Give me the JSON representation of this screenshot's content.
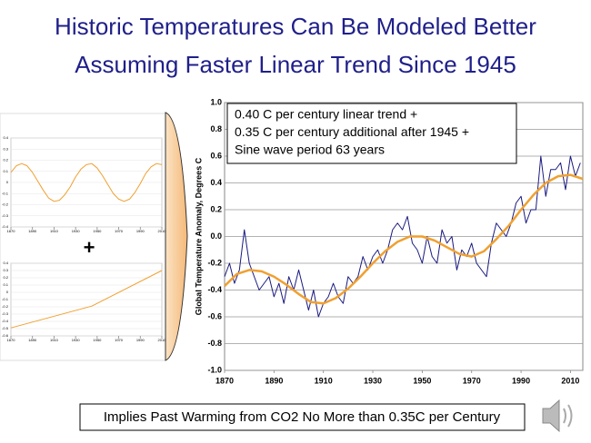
{
  "slide": {
    "title_lines": [
      "Historic Temperatures Can Be Modeled Better",
      "Assuming Faster Linear Trend Since 1945"
    ],
    "operator": "+",
    "footer": "Implies Past Warming from CO2 No More than 0.35C per Century"
  },
  "chart_data": [
    {
      "type": "line",
      "ylabel": "Global Temperature Anomaly, Degrees C",
      "annotation_lines": [
        "0.40 C per century linear trend +",
        "0.35 C per century additional after 1945 +",
        "Sine wave period 63 years"
      ],
      "xlim": [
        1870,
        2015
      ],
      "xticks": [
        1870,
        1890,
        1910,
        1930,
        1950,
        1970,
        1990,
        2010
      ],
      "ylim": [
        -1,
        1
      ],
      "yticks": [
        {
          "value": -1,
          "label": "-1.0"
        },
        -0.8,
        -0.6,
        -0.4,
        -0.2,
        {
          "value": 0,
          "label": "0.0"
        },
        0.2,
        0.4,
        0.6,
        0.8,
        {
          "value": 1,
          "label": "1.0"
        }
      ],
      "grid": true,
      "series": [
        {
          "color": "#1a1a80",
          "width": 1,
          "x": [
            1870,
            1872,
            1874,
            1876,
            1878,
            1880,
            1882,
            1884,
            1886,
            1888,
            1890,
            1892,
            1894,
            1896,
            1898,
            1900,
            1902,
            1904,
            1906,
            1908,
            1910,
            1912,
            1914,
            1916,
            1918,
            1920,
            1922,
            1924,
            1926,
            1928,
            1930,
            1932,
            1934,
            1936,
            1938,
            1940,
            1942,
            1944,
            1946,
            1948,
            1950,
            1952,
            1954,
            1956,
            1958,
            1960,
            1962,
            1964,
            1966,
            1968,
            1970,
            1972,
            1974,
            1976,
            1978,
            1980,
            1982,
            1984,
            1986,
            1988,
            1990,
            1992,
            1994,
            1996,
            1998,
            2000,
            2002,
            2004,
            2006,
            2008,
            2010,
            2012,
            2014
          ],
          "values": [
            -0.3,
            -0.2,
            -0.35,
            -0.25,
            0.05,
            -0.2,
            -0.3,
            -0.4,
            -0.35,
            -0.3,
            -0.45,
            -0.35,
            -0.5,
            -0.3,
            -0.4,
            -0.25,
            -0.4,
            -0.55,
            -0.4,
            -0.6,
            -0.5,
            -0.45,
            -0.35,
            -0.45,
            -0.5,
            -0.3,
            -0.35,
            -0.3,
            -0.15,
            -0.25,
            -0.15,
            -0.1,
            -0.2,
            -0.1,
            0.05,
            0.1,
            0.05,
            0.15,
            -0.05,
            -0.1,
            -0.2,
            0.0,
            -0.15,
            -0.2,
            0.05,
            -0.05,
            0.0,
            -0.25,
            -0.1,
            -0.15,
            -0.05,
            -0.2,
            -0.25,
            -0.3,
            -0.05,
            0.1,
            0.05,
            0.0,
            0.1,
            0.25,
            0.3,
            0.1,
            0.2,
            0.2,
            0.6,
            0.3,
            0.5,
            0.5,
            0.55,
            0.35,
            0.6,
            0.45,
            0.55
          ]
        },
        {
          "color": "#f0a030",
          "width": 2.5,
          "x": [
            1870,
            1875,
            1880,
            1885,
            1890,
            1895,
            1900,
            1905,
            1910,
            1915,
            1920,
            1925,
            1930,
            1935,
            1940,
            1945,
            1950,
            1955,
            1960,
            1965,
            1970,
            1975,
            1980,
            1985,
            1990,
            1995,
            2000,
            2005,
            2010,
            2015
          ],
          "values": [
            -0.37,
            -0.28,
            -0.25,
            -0.26,
            -0.3,
            -0.36,
            -0.43,
            -0.49,
            -0.5,
            -0.46,
            -0.39,
            -0.3,
            -0.2,
            -0.11,
            -0.04,
            0.0,
            0.0,
            -0.03,
            -0.08,
            -0.13,
            -0.15,
            -0.11,
            -0.02,
            0.08,
            0.2,
            0.31,
            0.4,
            0.45,
            0.46,
            0.43
          ]
        }
      ]
    },
    {
      "type": "line",
      "xlim": [
        1870,
        2010
      ],
      "xticks": [
        1870,
        1890,
        1910,
        1930,
        1950,
        1970,
        1990,
        2010
      ],
      "ylim": [
        -0.4,
        0.4
      ],
      "yticks": [
        0.4,
        0.3,
        0.2,
        0.1,
        0,
        -0.1,
        -0.2,
        -0.3,
        -0.4
      ],
      "grid": true,
      "series": [
        {
          "color": "#f0a030",
          "width": 1,
          "x": [
            1870,
            1875,
            1880,
            1885,
            1890,
            1895,
            1900,
            1905,
            1910,
            1915,
            1920,
            1925,
            1930,
            1935,
            1940,
            1945,
            1950,
            1955,
            1960,
            1965,
            1970,
            1975,
            1980,
            1985,
            1990,
            1995,
            2000,
            2005,
            2010
          ],
          "values": [
            0.09,
            0.15,
            0.17,
            0.15,
            0.09,
            0.01,
            -0.07,
            -0.14,
            -0.17,
            -0.16,
            -0.11,
            -0.04,
            0.05,
            0.12,
            0.16,
            0.17,
            0.13,
            0.06,
            -0.02,
            -0.1,
            -0.15,
            -0.17,
            -0.15,
            -0.09,
            -0.01,
            0.08,
            0.14,
            0.17,
            0.16
          ]
        }
      ]
    },
    {
      "type": "line",
      "xlim": [
        1870,
        2010
      ],
      "xticks": [
        1870,
        1890,
        1910,
        1930,
        1950,
        1970,
        1990,
        2010
      ],
      "ylim": [
        -0.6,
        0.4
      ],
      "yticks": [
        0.4,
        0.3,
        0.2,
        0.1,
        0,
        -0.1,
        -0.2,
        -0.3,
        -0.4,
        -0.5,
        -0.6
      ],
      "grid": true,
      "series": [
        {
          "color": "#f0a030",
          "width": 1,
          "x": [
            1870,
            1945,
            2010
          ],
          "values": [
            -0.49,
            -0.19,
            0.3
          ]
        }
      ]
    }
  ]
}
